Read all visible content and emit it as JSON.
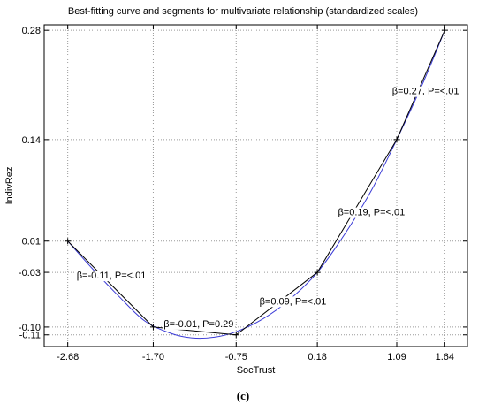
{
  "caption": "(c)",
  "chart_data": {
    "type": "line",
    "title": "Best-fitting curve and segments for multivariate relationship (standardized scales)",
    "xlabel": "SocTrust",
    "ylabel": "IndivRez",
    "xlim": [
      -2.95,
      1.9
    ],
    "ylim": [
      -0.125,
      0.287
    ],
    "grid": true,
    "x_ticks": [
      {
        "value": -2.68,
        "label": "-2.68"
      },
      {
        "value": -1.7,
        "label": "-1.70"
      },
      {
        "value": -0.75,
        "label": "-0.75"
      },
      {
        "value": 0.18,
        "label": "0.18"
      },
      {
        "value": 1.09,
        "label": "1.09"
      },
      {
        "value": 1.64,
        "label": "1.64"
      }
    ],
    "y_ticks": [
      {
        "value": 0.28,
        "label": "0.28"
      },
      {
        "value": 0.14,
        "label": "0.14"
      },
      {
        "value": 0.01,
        "label": "0.01"
      },
      {
        "value": -0.03,
        "label": "-0.03"
      },
      {
        "value": -0.1,
        "label": "-0.10"
      },
      {
        "value": -0.11,
        "label": "-0.11"
      }
    ],
    "segments": {
      "x": [
        -2.68,
        -1.7,
        -0.75,
        0.18,
        1.09,
        1.64
      ],
      "y": [
        0.01,
        -0.1,
        -0.11,
        -0.03,
        0.14,
        0.28
      ],
      "color": "#000000"
    },
    "curve": {
      "x": [
        -2.68,
        -2.4,
        -2.1,
        -1.8,
        -1.5,
        -1.25,
        -1.0,
        -0.75,
        -0.45,
        -0.15,
        0.18,
        0.5,
        0.8,
        1.09,
        1.4,
        1.64
      ],
      "y": [
        0.01,
        -0.025,
        -0.06,
        -0.092,
        -0.108,
        -0.114,
        -0.113,
        -0.106,
        -0.09,
        -0.066,
        -0.03,
        0.02,
        0.075,
        0.14,
        0.215,
        0.28
      ],
      "color": "#3b3bd6"
    },
    "annotations": [
      {
        "text": "β=-0.11, P=<.01",
        "x": -2.18,
        "y": -0.0335
      },
      {
        "text": "β=-0.01, P=0.29",
        "x": -1.18,
        "y": -0.0955
      },
      {
        "text": "β=0.09, P=<.01",
        "x": -0.1,
        "y": -0.0665
      },
      {
        "text": "β=0.19, P=<.01",
        "x": 0.8,
        "y": 0.0475
      },
      {
        "text": "β=0.27, P=<.01",
        "x": 1.42,
        "y": 0.2025
      }
    ]
  }
}
